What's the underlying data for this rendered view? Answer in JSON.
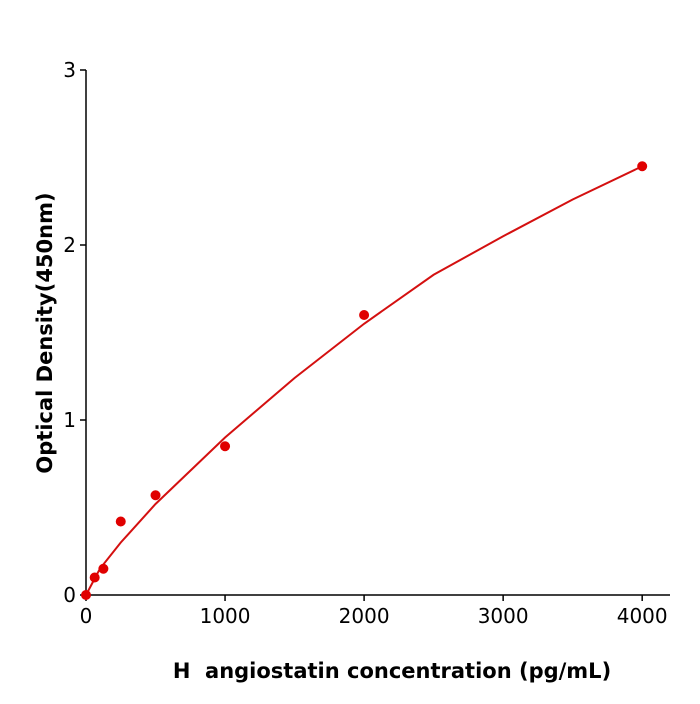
{
  "chart_data": {
    "type": "scatter",
    "xlabel": "H  angiostatin concentration (pg/mL)",
    "ylabel": "Optical Density(450nm)",
    "x": [
      0,
      62.5,
      125,
      250,
      500,
      1000,
      2000,
      4000
    ],
    "values": [
      0.0,
      0.1,
      0.15,
      0.42,
      0.57,
      0.85,
      1.6,
      2.45
    ],
    "color": "#e00000",
    "fit": {
      "x": [
        0,
        100,
        250,
        500,
        1000,
        1500,
        2000,
        2500,
        3000,
        3500,
        4000
      ],
      "values": [
        0,
        0.15,
        0.3,
        0.52,
        0.9,
        1.24,
        1.55,
        1.83,
        2.05,
        2.26,
        2.45
      ],
      "color": "#d41010"
    },
    "xlim": [
      0,
      4200
    ],
    "ylim": [
      0,
      3
    ],
    "xticks": [
      0,
      1000,
      2000,
      3000,
      4000
    ],
    "yticks": [
      0,
      1,
      2,
      3
    ]
  }
}
